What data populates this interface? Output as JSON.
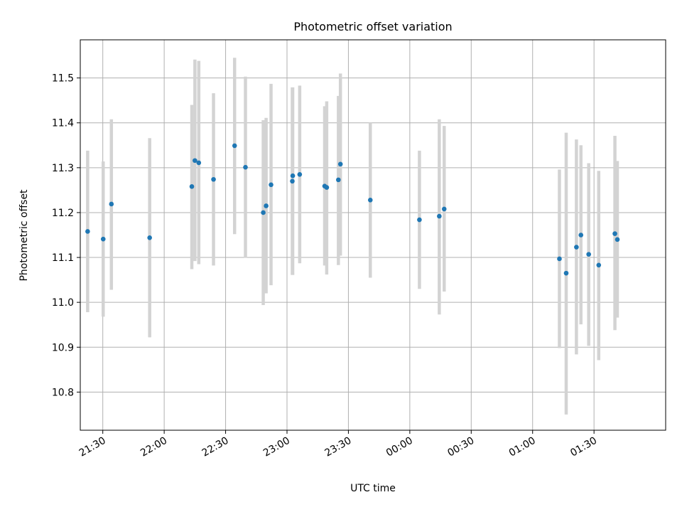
{
  "chart_data": {
    "type": "scatter",
    "title": "Photometric offset variation",
    "xlabel": "UTC time",
    "ylabel": "Photometric offset",
    "xlim_minutes": [
      1279,
      1565
    ],
    "ylim": [
      10.715,
      11.585
    ],
    "x_ticks": [
      {
        "minute": 1290,
        "label": "21:30"
      },
      {
        "minute": 1320,
        "label": "22:00"
      },
      {
        "minute": 1350,
        "label": "22:30"
      },
      {
        "minute": 1380,
        "label": "23:00"
      },
      {
        "minute": 1410,
        "label": "23:30"
      },
      {
        "minute": 1440,
        "label": "00:00"
      },
      {
        "minute": 1470,
        "label": "00:30"
      },
      {
        "minute": 1500,
        "label": "01:00"
      },
      {
        "minute": 1530,
        "label": "01:30"
      }
    ],
    "y_ticks": [
      {
        "value": 10.8,
        "label": "10.8"
      },
      {
        "value": 10.9,
        "label": "10.9"
      },
      {
        "value": 11.0,
        "label": "11.0"
      },
      {
        "value": 11.1,
        "label": "11.1"
      },
      {
        "value": 11.2,
        "label": "11.2"
      },
      {
        "value": 11.3,
        "label": "11.3"
      },
      {
        "value": 11.4,
        "label": "11.4"
      },
      {
        "value": 11.5,
        "label": "11.5"
      }
    ],
    "grid": true,
    "colors": {
      "point": "#1f77b4",
      "errorbar": "#d3d3d3",
      "grid": "#b0b0b0"
    },
    "points": [
      {
        "minute": 1282.6,
        "y": 11.158,
        "err_low": 10.978,
        "err_high": 11.338
      },
      {
        "minute": 1290.2,
        "y": 11.141,
        "err_low": 10.968,
        "err_high": 11.314
      },
      {
        "minute": 1294.2,
        "y": 11.219,
        "err_low": 11.028,
        "err_high": 11.408
      },
      {
        "minute": 1312.9,
        "y": 11.144,
        "err_low": 10.922,
        "err_high": 11.366
      },
      {
        "minute": 1333.5,
        "y": 11.258,
        "err_low": 11.074,
        "err_high": 11.44
      },
      {
        "minute": 1335.0,
        "y": 11.316,
        "err_low": 11.092,
        "err_high": 11.541
      },
      {
        "minute": 1336.9,
        "y": 11.311,
        "err_low": 11.085,
        "err_high": 11.538
      },
      {
        "minute": 1344.1,
        "y": 11.274,
        "err_low": 11.082,
        "err_high": 11.466
      },
      {
        "minute": 1354.4,
        "y": 11.349,
        "err_low": 11.152,
        "err_high": 11.545
      },
      {
        "minute": 1359.7,
        "y": 11.301,
        "err_low": 11.099,
        "err_high": 11.503
      },
      {
        "minute": 1368.4,
        "y": 11.2,
        "err_low": 10.994,
        "err_high": 11.406
      },
      {
        "minute": 1369.8,
        "y": 11.215,
        "err_low": 11.02,
        "err_high": 11.411
      },
      {
        "minute": 1372.2,
        "y": 11.262,
        "err_low": 11.038,
        "err_high": 11.487
      },
      {
        "minute": 1382.6,
        "y": 11.27,
        "err_low": 11.061,
        "err_high": 11.479
      },
      {
        "minute": 1382.8,
        "y": 11.282,
        "err_low": 11.061,
        "err_high": 11.479
      },
      {
        "minute": 1386.2,
        "y": 11.285,
        "err_low": 11.087,
        "err_high": 11.483
      },
      {
        "minute": 1398.4,
        "y": 11.259,
        "err_low": 11.082,
        "err_high": 11.437
      },
      {
        "minute": 1399.4,
        "y": 11.256,
        "err_low": 11.062,
        "err_high": 11.448
      },
      {
        "minute": 1405.1,
        "y": 11.273,
        "err_low": 11.083,
        "err_high": 11.46
      },
      {
        "minute": 1406.1,
        "y": 11.308,
        "err_low": 11.104,
        "err_high": 11.51
      },
      {
        "minute": 1420.7,
        "y": 11.228,
        "err_low": 11.055,
        "err_high": 11.4
      },
      {
        "minute": 1444.7,
        "y": 11.184,
        "err_low": 11.03,
        "err_high": 11.338
      },
      {
        "minute": 1454.4,
        "y": 11.192,
        "err_low": 10.973,
        "err_high": 11.408
      },
      {
        "minute": 1456.8,
        "y": 11.208,
        "err_low": 11.024,
        "err_high": 11.393
      },
      {
        "minute": 1513.1,
        "y": 11.097,
        "err_low": 10.898,
        "err_high": 11.296
      },
      {
        "minute": 1516.4,
        "y": 11.065,
        "err_low": 10.75,
        "err_high": 11.378
      },
      {
        "minute": 1521.4,
        "y": 11.123,
        "err_low": 10.884,
        "err_high": 11.363
      },
      {
        "minute": 1523.6,
        "y": 11.15,
        "err_low": 10.951,
        "err_high": 11.35
      },
      {
        "minute": 1527.4,
        "y": 11.107,
        "err_low": 10.903,
        "err_high": 11.31
      },
      {
        "minute": 1532.3,
        "y": 11.083,
        "err_low": 10.871,
        "err_high": 11.293
      },
      {
        "minute": 1540.2,
        "y": 11.153,
        "err_low": 10.938,
        "err_high": 11.371
      },
      {
        "minute": 1541.4,
        "y": 11.14,
        "err_low": 10.966,
        "err_high": 11.315
      }
    ]
  }
}
